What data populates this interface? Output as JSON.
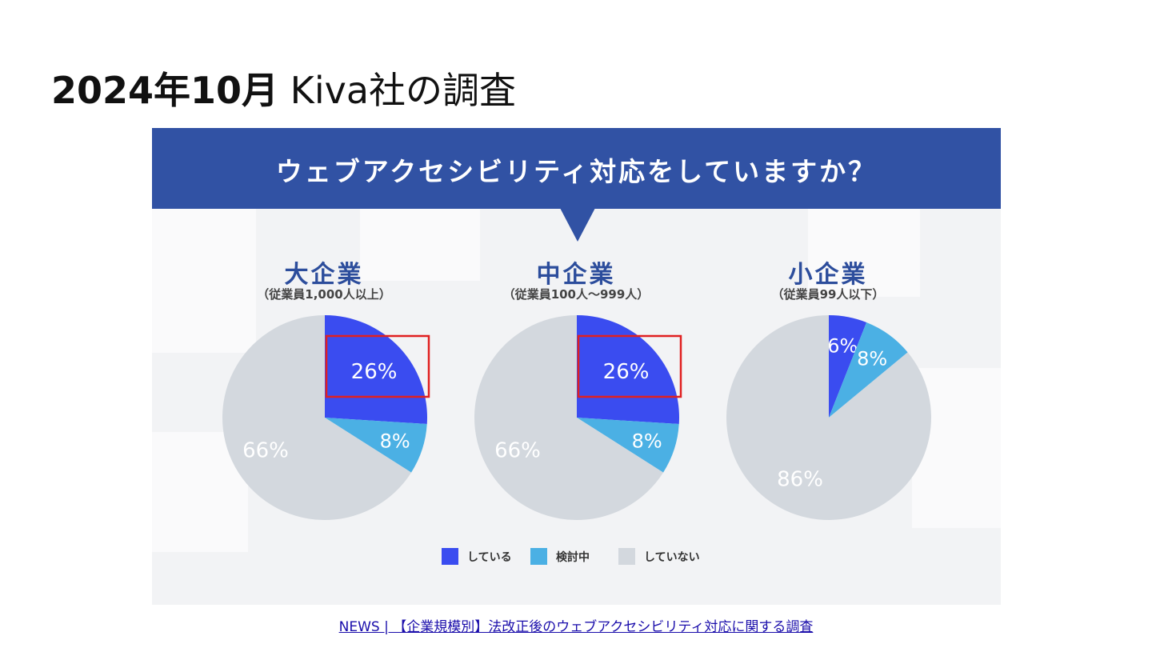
{
  "slide": {
    "title_bold": "2024年10月",
    "title_rest": " Kiva社の調査"
  },
  "infographic": {
    "question": "ウェブアクセシビリティ対応をしていますか？",
    "colors": {
      "banner": "#3152a4",
      "doing": "#3a4cf0",
      "considering": "#4bb0e4",
      "not_doing": "#d3d8de",
      "highlight": "#e02020"
    }
  },
  "groups": [
    {
      "title": "大企業",
      "subtitle": "（従業員1,000人以上）"
    },
    {
      "title": "中企業",
      "subtitle": "（従業員100人〜999人）"
    },
    {
      "title": "小企業",
      "subtitle": "（従業員99人以下）"
    }
  ],
  "legend": [
    {
      "label": "している",
      "color": "#3a4cf0"
    },
    {
      "label": "検討中",
      "color": "#4bb0e4"
    },
    {
      "label": "していない",
      "color": "#d3d8de"
    }
  ],
  "chart_data": [
    {
      "type": "pie",
      "title": "大企業",
      "categories": [
        "している",
        "検討中",
        "していない"
      ],
      "values": [
        26,
        8,
        66
      ],
      "labels": [
        "26%",
        "8%",
        "66%"
      ],
      "highlighted": "している"
    },
    {
      "type": "pie",
      "title": "中企業",
      "categories": [
        "している",
        "検討中",
        "していない"
      ],
      "values": [
        26,
        8,
        66
      ],
      "labels": [
        "26%",
        "8%",
        "66%"
      ],
      "highlighted": "している"
    },
    {
      "type": "pie",
      "title": "小企業",
      "categories": [
        "している",
        "検討中",
        "していない"
      ],
      "values": [
        6,
        8,
        86
      ],
      "labels": [
        "6%",
        "8%",
        "86%"
      ]
    }
  ],
  "footer": {
    "link_text": "NEWS | 【企業規模別】法改正後のウェブアクセシビリティ対応に関する調査"
  }
}
